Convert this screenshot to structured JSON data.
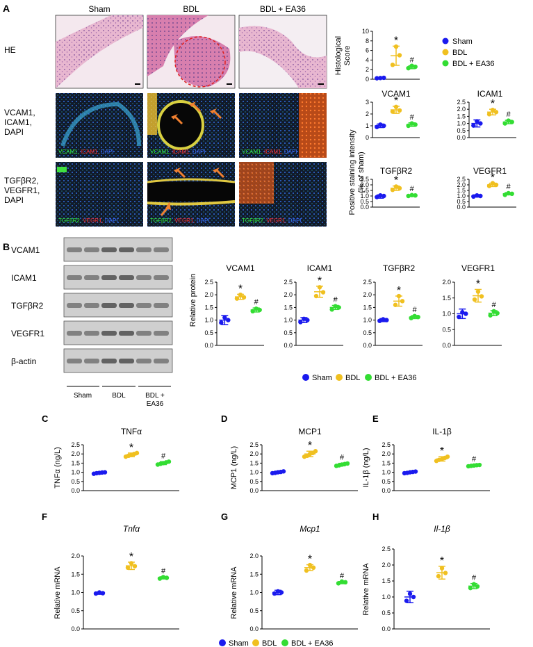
{
  "colors": {
    "sham": "#1a1aee",
    "bdl": "#f0c020",
    "ea36": "#33dd33"
  },
  "panels": {
    "A": "A",
    "B": "B",
    "C": "C",
    "D": "D",
    "E": "E",
    "F": "F",
    "G": "G",
    "H": "H"
  },
  "histology": {
    "col_headers": [
      "Sham",
      "BDL",
      "BDL + EA36"
    ],
    "row_labels": [
      [
        "HE"
      ],
      [
        "VCAM1,",
        "ICAM1,",
        "DAPI"
      ],
      [
        "TGFβR2,",
        "VEGFR1,",
        "DAPI"
      ]
    ],
    "stain_captions": {
      "row2": [
        {
          "t": "VCAM1, ",
          "c": "#33ee33"
        },
        {
          "t": "ICAM1, ",
          "c": "#ff3030"
        },
        {
          "t": "DAPI",
          "c": "#3a6cff"
        }
      ],
      "row3": [
        {
          "t": "TGFβR2, ",
          "c": "#33ee33"
        },
        {
          "t": "VEGR1, ",
          "c": "#ff3030"
        },
        {
          "t": "DAPI",
          "c": "#3a6cff"
        }
      ]
    }
  },
  "legend": {
    "sham": "Sham",
    "bdl": "BDL",
    "ea36": "BDL + EA36"
  },
  "western": {
    "bands": [
      "VCAM1",
      "ICAM1",
      "TGFβR2",
      "VEGFR1",
      "β-actin"
    ],
    "groups": [
      "Sham",
      "BDL",
      "BDL +",
      "EA36"
    ]
  },
  "shared_ylabels": {
    "A_stain": [
      "Positive staining intensity",
      "(% of sham)"
    ],
    "B": "Relative protein"
  },
  "chart_data": [
    {
      "id": "A-score",
      "type": "scatter",
      "title": "",
      "ylabel": [
        "Histological",
        "Score"
      ],
      "ylim": [
        0,
        10
      ],
      "yticks": [
        "0",
        "2",
        "4",
        "6",
        "8",
        "10"
      ],
      "series": [
        {
          "name": "Sham",
          "values": [
            0.2,
            0.3,
            0.25
          ],
          "mean": 0.25,
          "sd": 0.1
        },
        {
          "name": "BDL",
          "values": [
            3.0,
            5.0,
            6.8
          ],
          "mean": 4.9,
          "sd": 2.0
        },
        {
          "name": "BDL + EA36",
          "values": [
            2.3,
            2.6,
            2.8
          ],
          "mean": 2.5,
          "sd": 0.3
        }
      ],
      "marks": [
        "",
        "*",
        "#"
      ]
    },
    {
      "id": "A-vcam",
      "type": "scatter",
      "title": "VCAM1",
      "ylim": [
        0,
        3
      ],
      "yticks": [
        "0",
        "1",
        "2",
        "3"
      ],
      "series": [
        {
          "name": "Sham",
          "values": [
            0.9,
            1.0,
            1.1
          ],
          "mean": 1.0,
          "sd": 0.15
        },
        {
          "name": "BDL",
          "values": [
            2.2,
            2.3,
            2.6
          ],
          "mean": 2.35,
          "sd": 0.3
        },
        {
          "name": "BDL + EA36",
          "values": [
            1.0,
            1.1,
            1.2
          ],
          "mean": 1.1,
          "sd": 0.15
        }
      ],
      "marks": [
        "",
        "*",
        "#"
      ]
    },
    {
      "id": "A-icam",
      "type": "scatter",
      "title": "ICAM1",
      "ylim": [
        0,
        2.5
      ],
      "yticks": [
        "0.0",
        "0.5",
        "1.0",
        "1.5",
        "2.0",
        "2.5"
      ],
      "series": [
        {
          "name": "Sham",
          "values": [
            0.85,
            1.0,
            1.15
          ],
          "mean": 1.0,
          "sd": 0.25
        },
        {
          "name": "BDL",
          "values": [
            1.65,
            1.8,
            1.95
          ],
          "mean": 1.8,
          "sd": 0.2
        },
        {
          "name": "BDL + EA36",
          "values": [
            1.0,
            1.1,
            1.2
          ],
          "mean": 1.1,
          "sd": 0.12
        }
      ],
      "marks": [
        "",
        "*",
        "#"
      ]
    },
    {
      "id": "A-tgf",
      "type": "scatter",
      "title": "TGFβR2",
      "ylim": [
        0,
        2.5
      ],
      "yticks": [
        "0.0",
        "0.5",
        "1.0",
        "1.5",
        "2.0",
        "2.5"
      ],
      "series": [
        {
          "name": "Sham",
          "values": [
            0.9,
            1.0,
            1.05
          ],
          "mean": 0.95,
          "sd": 0.15
        },
        {
          "name": "BDL",
          "values": [
            1.55,
            1.7,
            1.85
          ],
          "mean": 1.7,
          "sd": 0.2
        },
        {
          "name": "BDL + EA36",
          "values": [
            1.0,
            1.05,
            1.08
          ],
          "mean": 1.03,
          "sd": 0.08
        }
      ],
      "marks": [
        "",
        "*",
        "#"
      ]
    },
    {
      "id": "A-vegf",
      "type": "scatter",
      "title": "VEGFR1",
      "ylim": [
        0,
        2.5
      ],
      "yticks": [
        "0.0",
        "0.5",
        "1.0",
        "1.5",
        "2.0",
        "2.5"
      ],
      "series": [
        {
          "name": "Sham",
          "values": [
            0.95,
            1.0,
            1.05
          ],
          "mean": 1.0,
          "sd": 0.1
        },
        {
          "name": "BDL",
          "values": [
            1.9,
            2.0,
            2.15
          ],
          "mean": 2.0,
          "sd": 0.15
        },
        {
          "name": "BDL + EA36",
          "values": [
            1.1,
            1.2,
            1.25
          ],
          "mean": 1.2,
          "sd": 0.1
        }
      ],
      "marks": [
        "",
        "*",
        "#"
      ]
    },
    {
      "id": "B-vcam",
      "type": "scatter",
      "title": "VCAM1",
      "ylim": [
        0,
        2.5
      ],
      "yticks": [
        "0.0",
        "0.5",
        "1.0",
        "1.5",
        "2.0",
        "2.5"
      ],
      "series": [
        {
          "name": "Sham",
          "values": [
            0.9,
            1.0,
            1.1
          ],
          "mean": 1.0,
          "sd": 0.18
        },
        {
          "name": "BDL",
          "values": [
            1.85,
            1.9,
            2.0
          ],
          "mean": 1.92,
          "sd": 0.1
        },
        {
          "name": "BDL + EA36",
          "values": [
            1.35,
            1.4,
            1.45
          ],
          "mean": 1.4,
          "sd": 0.08
        }
      ],
      "marks": [
        "",
        "*",
        "#"
      ]
    },
    {
      "id": "B-icam",
      "type": "scatter",
      "title": "ICAM1",
      "ylim": [
        0,
        2.5
      ],
      "yticks": [
        "0.0",
        "0.5",
        "1.0",
        "1.5",
        "2.0",
        "2.5"
      ],
      "series": [
        {
          "name": "Sham",
          "values": [
            0.92,
            1.0,
            1.05
          ],
          "mean": 1.0,
          "sd": 0.1
        },
        {
          "name": "BDL",
          "values": [
            1.95,
            2.1,
            2.3
          ],
          "mean": 2.12,
          "sd": 0.22
        },
        {
          "name": "BDL + EA36",
          "values": [
            1.42,
            1.5,
            1.55
          ],
          "mean": 1.5,
          "sd": 0.08
        }
      ],
      "marks": [
        "",
        "*",
        "#"
      ]
    },
    {
      "id": "B-tgf",
      "type": "scatter",
      "title": "TGFβR2",
      "ylim": [
        0,
        2.5
      ],
      "yticks": [
        "0.0",
        "0.5",
        "1.0",
        "1.5",
        "2.0",
        "2.5"
      ],
      "series": [
        {
          "name": "Sham",
          "values": [
            0.97,
            1.0,
            1.03
          ],
          "mean": 1.0,
          "sd": 0.06
        },
        {
          "name": "BDL",
          "values": [
            1.6,
            1.75,
            1.95
          ],
          "mean": 1.75,
          "sd": 0.2
        },
        {
          "name": "BDL + EA36",
          "values": [
            1.08,
            1.12,
            1.16
          ],
          "mean": 1.12,
          "sd": 0.06
        }
      ],
      "marks": [
        "",
        "*",
        "#"
      ]
    },
    {
      "id": "B-vegf",
      "type": "scatter",
      "title": "VEGFR1",
      "ylim": [
        0,
        2.0
      ],
      "yticks": [
        "0.0",
        "0.5",
        "1.0",
        "1.5",
        "2.0"
      ],
      "series": [
        {
          "name": "Sham",
          "values": [
            0.9,
            1.0,
            1.05
          ],
          "mean": 1.0,
          "sd": 0.15
        },
        {
          "name": "BDL",
          "values": [
            1.45,
            1.55,
            1.7
          ],
          "mean": 1.57,
          "sd": 0.2
        },
        {
          "name": "BDL + EA36",
          "values": [
            0.95,
            1.02,
            1.08
          ],
          "mean": 1.02,
          "sd": 0.08
        }
      ],
      "marks": [
        "",
        "*",
        "#"
      ]
    },
    {
      "id": "C",
      "type": "scatter",
      "title": "TNFα",
      "ylabel": "TNFα (ng/L)",
      "ylim": [
        0,
        2.5
      ],
      "yticks": [
        "0.0",
        "0.5",
        "1.0",
        "1.5",
        "2.0",
        "2.5"
      ],
      "series": [
        {
          "name": "Sham",
          "values": [
            0.92,
            0.95,
            0.97,
            0.99,
            1.0
          ],
          "mean": 0.96,
          "sd": 0.06
        },
        {
          "name": "BDL",
          "values": [
            1.85,
            1.9,
            1.95,
            2.0,
            2.05
          ],
          "mean": 1.95,
          "sd": 0.1
        },
        {
          "name": "BDL + EA36",
          "values": [
            1.42,
            1.46,
            1.5,
            1.54,
            1.58
          ],
          "mean": 1.5,
          "sd": 0.08
        }
      ],
      "marks": [
        "",
        "*",
        "#"
      ]
    },
    {
      "id": "D",
      "type": "scatter",
      "title": "MCP1",
      "ylabel": "MCP1 (ng/L)",
      "ylim": [
        0,
        2.5
      ],
      "yticks": [
        "0.0",
        "0.5",
        "1.0",
        "1.5",
        "2.0",
        "2.5"
      ],
      "series": [
        {
          "name": "Sham",
          "values": [
            0.95,
            0.97,
            1.0,
            1.02,
            1.05
          ],
          "mean": 1.0,
          "sd": 0.06
        },
        {
          "name": "BDL",
          "values": [
            1.85,
            1.9,
            2.0,
            2.05,
            2.15
          ],
          "mean": 2.0,
          "sd": 0.15
        },
        {
          "name": "BDL + EA36",
          "values": [
            1.35,
            1.38,
            1.42,
            1.45,
            1.48
          ],
          "mean": 1.42,
          "sd": 0.07
        }
      ],
      "marks": [
        "",
        "*",
        "#"
      ]
    },
    {
      "id": "E",
      "type": "scatter",
      "title": "IL-1β",
      "ylabel": "IL-1β (ng/L)",
      "ylim": [
        0,
        2.5
      ],
      "yticks": [
        "0.0",
        "0.5",
        "1.0",
        "1.5",
        "2.0",
        "2.5"
      ],
      "series": [
        {
          "name": "Sham",
          "values": [
            0.95,
            0.97,
            1.0,
            1.02,
            1.04
          ],
          "mean": 1.0,
          "sd": 0.05
        },
        {
          "name": "BDL",
          "values": [
            1.62,
            1.68,
            1.72,
            1.78,
            1.85
          ],
          "mean": 1.73,
          "sd": 0.12
        },
        {
          "name": "BDL + EA36",
          "values": [
            1.33,
            1.35,
            1.37,
            1.39,
            1.4
          ],
          "mean": 1.37,
          "sd": 0.04
        }
      ],
      "marks": [
        "",
        "*",
        "#"
      ]
    },
    {
      "id": "F",
      "type": "scatter",
      "title": "Tnfα",
      "title_italic": true,
      "ylabel": "Relative mRNA",
      "ylim": [
        0,
        2.0
      ],
      "yticks": [
        "0.0",
        "0.5",
        "1.0",
        "1.5",
        "2.0"
      ],
      "series": [
        {
          "name": "Sham",
          "values": [
            0.97,
            0.98,
            1.0
          ],
          "mean": 0.98,
          "sd": 0.03
        },
        {
          "name": "BDL",
          "values": [
            1.68,
            1.72,
            1.8
          ],
          "mean": 1.73,
          "sd": 0.1
        },
        {
          "name": "BDL + EA36",
          "values": [
            1.38,
            1.4,
            1.42
          ],
          "mean": 1.4,
          "sd": 0.03
        }
      ],
      "marks": [
        "",
        "*",
        "#"
      ]
    },
    {
      "id": "G",
      "type": "scatter",
      "title": "Mcp1",
      "title_italic": true,
      "ylabel": "Relative mRNA",
      "ylim": [
        0,
        2.0
      ],
      "yticks": [
        "0.0",
        "0.5",
        "1.0",
        "1.5",
        "2.0"
      ],
      "series": [
        {
          "name": "Sham",
          "values": [
            0.97,
            1.0,
            1.03
          ],
          "mean": 1.0,
          "sd": 0.06
        },
        {
          "name": "BDL",
          "values": [
            1.6,
            1.68,
            1.75
          ],
          "mean": 1.68,
          "sd": 0.08
        },
        {
          "name": "BDL + EA36",
          "values": [
            1.25,
            1.28,
            1.3
          ],
          "mean": 1.27,
          "sd": 0.03
        }
      ],
      "marks": [
        "",
        "*",
        "#"
      ]
    },
    {
      "id": "H",
      "type": "scatter",
      "title": "Il-1β",
      "title_italic": true,
      "ylabel": "Relative mRNA",
      "ylim": [
        0,
        2.5
      ],
      "yticks": [
        "0.0",
        "0.5",
        "1.0",
        "1.5",
        "2.0",
        "2.5"
      ],
      "series": [
        {
          "name": "Sham",
          "values": [
            0.88,
            1.0,
            1.1
          ],
          "mean": 1.0,
          "sd": 0.18
        },
        {
          "name": "BDL",
          "values": [
            1.65,
            1.75,
            1.9
          ],
          "mean": 1.76,
          "sd": 0.2
        },
        {
          "name": "BDL + EA36",
          "values": [
            1.28,
            1.33,
            1.4
          ],
          "mean": 1.34,
          "sd": 0.08
        }
      ],
      "marks": [
        "",
        "*",
        "#"
      ]
    }
  ]
}
